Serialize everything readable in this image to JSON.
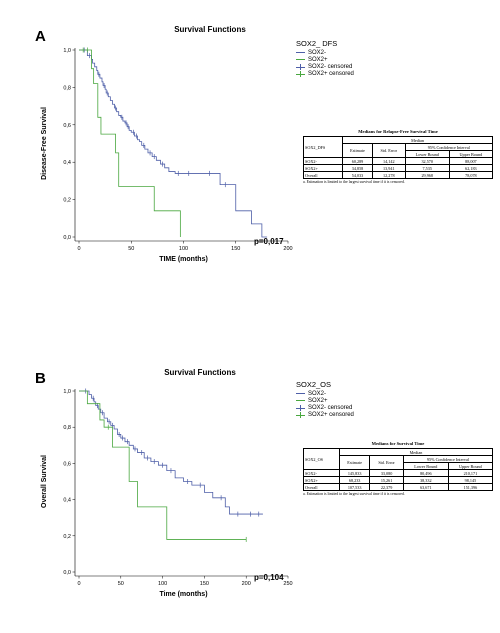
{
  "colors": {
    "sox2_neg": "#4e5fa8",
    "sox2_pos": "#49a73f",
    "axis": "#000000"
  },
  "panels": [
    {
      "letter": "A",
      "title": "Survival Functions",
      "legend_title": "SOX2_ DFS",
      "legend_items": [
        "SOX2-",
        "SOX2+",
        "SOX2- censored",
        "SOX2+ censored"
      ],
      "p_value": "p=0,017",
      "stats": {
        "title": "Medians for Relapse-Free Survival Time",
        "corner": "SOX2_DFS",
        "header_median": "Median",
        "header_ci": "95% Confidence Interval",
        "col_estimate": "Estimate",
        "col_stderr": "Std. Error",
        "col_lower": "Lower Bound",
        "col_upper": "Upper Bound",
        "rows": [
          {
            "label": "SOX2-",
            "estimate": "60,289",
            "stderr": "14,142",
            "lower": "32,570",
            "upper": "88,007"
          },
          {
            "label": "SOX2+",
            "estimate": "34,858",
            "stderr": "13,941",
            "lower": "7,535",
            "upper": "62,183"
          },
          {
            "label": "Overall",
            "estimate": "54,033",
            "stderr": "12,278",
            "lower": "29,968",
            "upper": "78,078"
          }
        ],
        "footnote": "a. Estimation is limited to the largest survival time if it is censored."
      }
    },
    {
      "letter": "B",
      "title": "Survival Functions",
      "legend_title": "SOX2_OS",
      "legend_items": [
        "SOX2-",
        "SOX2+",
        "SOX2- censored",
        "SOX2+ censored"
      ],
      "p_value": "p=0,104",
      "stats": {
        "title": "Medians for Survival Time",
        "corner": "SOX2_OS",
        "header_median": "Median",
        "header_ci": "95% Confidence Interval",
        "col_estimate": "Estimate",
        "col_stderr": "Std. Error",
        "col_lower": "Lower Bound",
        "col_upper": "Upper Bound",
        "rows": [
          {
            "label": "SOX2-",
            "estimate": "145,833",
            "stderr": "33,080",
            "lower": "80,496",
            "upper": "210,171"
          },
          {
            "label": "SOX2+",
            "estimate": "68,233",
            "stderr": "15,261",
            "lower": "38,332",
            "upper": "98,145"
          },
          {
            "label": "Overall",
            "estimate": "107,533",
            "stderr": "22,379",
            "lower": "63,671",
            "upper": "151,396"
          }
        ],
        "footnote": "a. Estimation is limited to the largest survival time if it is censored."
      }
    }
  ],
  "chart_data": [
    {
      "type": "line",
      "title": "Survival Functions",
      "xlabel": "TIME (months)",
      "ylabel": "Disease-Free Survival",
      "xlim": [
        0,
        200
      ],
      "ylim": [
        0,
        1
      ],
      "xticks": [
        0,
        50,
        100,
        150,
        200
      ],
      "yticks": [
        0,
        0.2,
        0.4,
        0.6,
        0.8,
        1.0
      ],
      "xtick_labels": [
        "0",
        "50",
        "100",
        "150",
        "200"
      ],
      "ytick_labels": [
        "0,0",
        "0,2",
        "0,4",
        "0,6",
        "0,8",
        "1,0"
      ],
      "series": [
        {
          "name": "SOX2-",
          "color": "#4e5fa8",
          "step": true,
          "x": [
            0,
            8,
            12,
            13,
            15,
            17,
            18,
            20,
            22,
            23,
            25,
            26,
            28,
            30,
            32,
            34,
            36,
            38,
            40,
            42,
            44,
            46,
            48,
            50,
            53,
            56,
            58,
            60,
            63,
            66,
            70,
            74,
            78,
            82,
            86,
            92,
            100,
            110,
            120,
            135,
            150,
            165,
            175,
            180
          ],
          "y": [
            1.0,
            0.97,
            0.95,
            0.93,
            0.91,
            0.89,
            0.87,
            0.85,
            0.83,
            0.81,
            0.79,
            0.77,
            0.75,
            0.73,
            0.71,
            0.69,
            0.67,
            0.65,
            0.64,
            0.62,
            0.61,
            0.59,
            0.57,
            0.56,
            0.54,
            0.52,
            0.51,
            0.49,
            0.47,
            0.45,
            0.43,
            0.41,
            0.39,
            0.37,
            0.35,
            0.34,
            0.34,
            0.34,
            0.34,
            0.28,
            0.14,
            0.07,
            0.0,
            0.0
          ],
          "censored_x": [
            5,
            10,
            19,
            24,
            27,
            35,
            41,
            45,
            47,
            52,
            55,
            62,
            68,
            72,
            80,
            95,
            105,
            125,
            140
          ]
        },
        {
          "name": "SOX2+",
          "color": "#49a73f",
          "step": true,
          "x": [
            0,
            12,
            14,
            18,
            21,
            35,
            38,
            70,
            72,
            97
          ],
          "y": [
            1.0,
            0.9,
            0.82,
            0.64,
            0.55,
            0.45,
            0.27,
            0.27,
            0.14,
            0.0
          ],
          "censored_x": [
            4,
            8
          ]
        }
      ]
    },
    {
      "type": "line",
      "title": "Survival Functions",
      "xlabel": "Time (months)",
      "ylabel": "Overall Survival",
      "xlim": [
        0,
        250
      ],
      "ylim": [
        0,
        1
      ],
      "xticks": [
        0,
        50,
        100,
        150,
        200,
        250
      ],
      "yticks": [
        0,
        0.2,
        0.4,
        0.6,
        0.8,
        1.0
      ],
      "xtick_labels": [
        "0",
        "50",
        "100",
        "150",
        "200",
        "250"
      ],
      "ytick_labels": [
        "0,0",
        "0,2",
        "0,4",
        "0,6",
        "0,8",
        "1,0"
      ],
      "series": [
        {
          "name": "SOX2-",
          "color": "#4e5fa8",
          "step": true,
          "x": [
            0,
            12,
            15,
            18,
            20,
            23,
            26,
            30,
            34,
            38,
            42,
            46,
            50,
            55,
            60,
            65,
            70,
            78,
            86,
            95,
            105,
            115,
            125,
            135,
            150,
            160,
            175,
            180,
            220
          ],
          "y": [
            1.0,
            0.98,
            0.96,
            0.94,
            0.92,
            0.9,
            0.88,
            0.85,
            0.83,
            0.81,
            0.79,
            0.76,
            0.74,
            0.72,
            0.7,
            0.68,
            0.66,
            0.63,
            0.61,
            0.59,
            0.56,
            0.52,
            0.5,
            0.48,
            0.44,
            0.41,
            0.36,
            0.32,
            0.32
          ],
          "censored_x": [
            8,
            17,
            22,
            28,
            36,
            40,
            48,
            52,
            58,
            67,
            75,
            82,
            90,
            100,
            110,
            130,
            145,
            170,
            190,
            205,
            215
          ]
        },
        {
          "name": "SOX2+",
          "color": "#49a73f",
          "step": true,
          "x": [
            0,
            10,
            25,
            30,
            40,
            60,
            70,
            105,
            200
          ],
          "y": [
            1.0,
            0.93,
            0.84,
            0.8,
            0.69,
            0.5,
            0.36,
            0.18,
            0.18
          ],
          "censored_x": [
            35,
            200
          ]
        }
      ]
    }
  ]
}
